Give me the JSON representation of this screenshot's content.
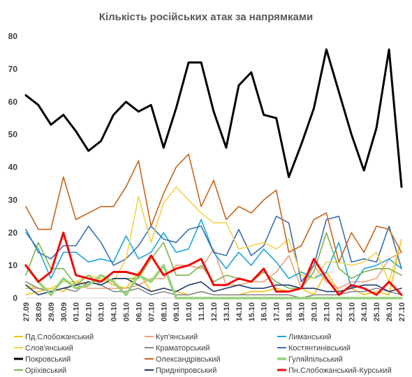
{
  "chart_data": {
    "type": "line",
    "title": "Кількість російських атак за напрямками",
    "xlabel": "",
    "ylabel": "",
    "ylim": [
      0,
      80
    ],
    "yticks": [
      0,
      10,
      20,
      30,
      40,
      50,
      60,
      70,
      80
    ],
    "grid": false,
    "legend_position": "bottom",
    "x": [
      "27.09",
      "28.09",
      "29.09",
      "30.09",
      "01.10",
      "02.10",
      "03.10",
      "04.10",
      "05.10",
      "06.10",
      "07.10",
      "08.10",
      "09.10",
      "10.10",
      "11.10",
      "12.10",
      "13.10",
      "14.10",
      "15.10",
      "16.10",
      "17.10",
      "18.10",
      "19.10",
      "20.10",
      "21.10",
      "22.10",
      "23.10",
      "24.10",
      "25.10",
      "26.10",
      "27.10"
    ],
    "x_tick_labels": [
      "27.09",
      "28.09",
      "29.09",
      "30.09",
      "01.10",
      "02.10",
      "03.10",
      "04.10",
      "05.10",
      "06.10",
      "07.10",
      "08.10",
      "09.10",
      "10.10",
      "11.10",
      "12.10",
      "13.10",
      "14.10",
      "15.10",
      "16.10",
      "17.10",
      "18.10",
      "19.10",
      "20.10",
      "21.10",
      "22.10",
      "23.10",
      "24.10",
      "25.10",
      "26.10",
      "27.10"
    ],
    "series": [
      {
        "name": "Пд.Слобожанський",
        "color": "#f2c011",
        "width": 1.6,
        "values": [
          1,
          2,
          3,
          2,
          5,
          4,
          6,
          4,
          3,
          8,
          2,
          3,
          2,
          1,
          2,
          1,
          1,
          1,
          2,
          2,
          3,
          2,
          3,
          1,
          8,
          2,
          3,
          1,
          2,
          1,
          18
        ]
      },
      {
        "name": "Куп'янський",
        "color": "#f0a078",
        "width": 1.6,
        "values": [
          3,
          3,
          2,
          3,
          4,
          3,
          3,
          3,
          3,
          4,
          6,
          6,
          10,
          10,
          9,
          15,
          4,
          4,
          5,
          5,
          8,
          13,
          3,
          10,
          5,
          3,
          5,
          5,
          6,
          12,
          14
        ]
      },
      {
        "name": "Лиманський",
        "color": "#1aa6e0",
        "width": 1.6,
        "values": [
          20,
          15,
          6,
          14,
          14,
          11,
          12,
          11,
          19,
          12,
          14,
          20,
          14,
          15,
          24,
          14,
          9,
          14,
          10,
          15,
          11,
          6,
          8,
          6,
          8,
          17,
          3,
          9,
          10,
          12,
          9
        ]
      },
      {
        "name": "Костянтинівський",
        "color": "#3a6fb0",
        "width": 1.6,
        "values": [
          21,
          14,
          12,
          16,
          16,
          22,
          17,
          10,
          12,
          16,
          22,
          18,
          17,
          21,
          22,
          14,
          13,
          21,
          13,
          16,
          25,
          23,
          5,
          10,
          24,
          25,
          11,
          12,
          11,
          22,
          9
        ]
      },
      {
        "name": "Слов'янський",
        "color": "#f5d24b",
        "width": 1.6,
        "values": [
          4,
          3,
          3,
          5,
          5,
          7,
          6,
          5,
          12,
          31,
          17,
          29,
          34,
          30,
          26,
          23,
          23,
          15,
          16,
          17,
          15,
          18,
          7,
          6,
          11,
          11,
          10,
          11,
          14,
          5,
          18
        ]
      },
      {
        "name": "Краматорський",
        "color": "#8a8a8a",
        "width": 1.6,
        "values": [
          5,
          3,
          2,
          3,
          2,
          5,
          4,
          2,
          2,
          3,
          1,
          2,
          1,
          1,
          2,
          1,
          1,
          1,
          1,
          1,
          1,
          1,
          0,
          1,
          1,
          1,
          2,
          2,
          3,
          2,
          1
        ]
      },
      {
        "name": "Покровський",
        "color": "#000000",
        "width": 3,
        "values": [
          62,
          59,
          53,
          56,
          51,
          45,
          48,
          56,
          60,
          57,
          59,
          46,
          58,
          72,
          72,
          57,
          46,
          65,
          69,
          56,
          55,
          37,
          47,
          58,
          76,
          63,
          50,
          39,
          52,
          76,
          34
        ]
      },
      {
        "name": "Олександрівський",
        "color": "#c5651e",
        "width": 1.6,
        "values": [
          28,
          21,
          21,
          37,
          24,
          26,
          28,
          28,
          34,
          42,
          22,
          32,
          40,
          44,
          28,
          36,
          24,
          28,
          26,
          30,
          33,
          14,
          16,
          24,
          26,
          11,
          20,
          14,
          22,
          21,
          14
        ]
      },
      {
        "name": "Гуляйпільський",
        "color": "#9bd17a",
        "width": 3.6,
        "values": [
          10,
          5,
          1,
          6,
          3,
          4,
          7,
          5,
          1,
          7,
          5,
          10,
          0,
          0,
          0,
          0,
          0,
          0,
          0,
          0,
          0,
          0,
          0,
          0,
          0,
          0,
          0,
          0,
          0,
          0,
          0
        ]
      },
      {
        "name": "Оріхівський",
        "color": "#7fb24d",
        "width": 1.6,
        "values": [
          7,
          17,
          9,
          9,
          4,
          7,
          4,
          6,
          6,
          6,
          12,
          17,
          7,
          7,
          10,
          5,
          7,
          6,
          5,
          8,
          5,
          3,
          3,
          8,
          20,
          9,
          6,
          8,
          9,
          9,
          7
        ]
      },
      {
        "name": "Придніпровський",
        "color": "#1f3a6e",
        "width": 1.6,
        "values": [
          4,
          1,
          2,
          3,
          4,
          5,
          4,
          6,
          6,
          4,
          2,
          3,
          2,
          4,
          5,
          2,
          3,
          4,
          3,
          3,
          4,
          4,
          3,
          3,
          2,
          2,
          3,
          4,
          4,
          2,
          3
        ]
      },
      {
        "name": "Пн.Слобожанський-Курський",
        "color": "#ef0b0b",
        "width": 3,
        "values": [
          10,
          5,
          8,
          20,
          7,
          6,
          5,
          8,
          8,
          7,
          13,
          7,
          9,
          10,
          12,
          4,
          4,
          6,
          5,
          9,
          2,
          2,
          3,
          12,
          6,
          1,
          4,
          3,
          1,
          5,
          1
        ]
      }
    ]
  },
  "legend_rows": [
    [
      "Пд.Слобожанський",
      "Куп'янський",
      "Лиманський"
    ],
    [
      "Слов'янський",
      "Краматорський",
      "Костянтинівський"
    ],
    [
      "Покровський",
      "Олександрівський",
      "Гуляйпільський"
    ],
    [
      "Оріхівський",
      "Придніпровський",
      "Пн.Слобожанський-Курський"
    ]
  ]
}
